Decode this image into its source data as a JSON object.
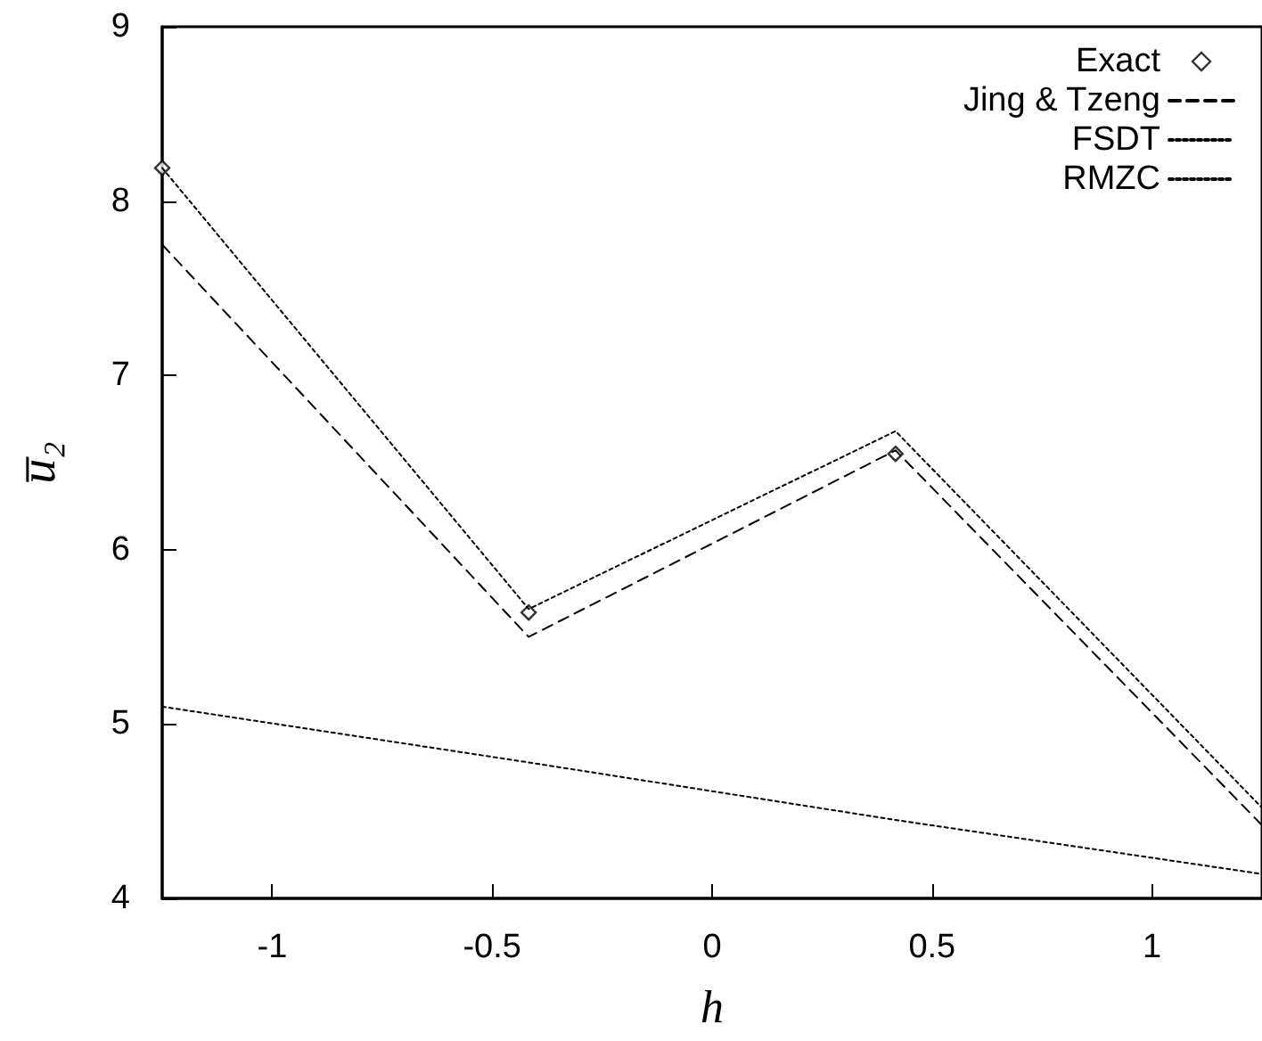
{
  "chart_data": {
    "type": "line",
    "xlabel": "h",
    "ylabel": "u̅₂",
    "xlim": [
      -1.25,
      1.25
    ],
    "xticks": [
      -1,
      -0.5,
      0,
      0.5,
      1
    ],
    "ylim": [
      4,
      9
    ],
    "yticks": [
      4,
      5,
      6,
      7,
      8,
      9
    ],
    "x": [
      -1.25,
      -0.417,
      0.417,
      1.25
    ],
    "series": [
      {
        "name": "Exact",
        "type": "scatter",
        "marker": "diamond",
        "color": "#000000",
        "values": [
          8.19,
          5.64,
          6.55,
          null
        ]
      },
      {
        "name": "Jing & Tzeng",
        "marker": "none",
        "line_style": "dashed",
        "color": "#000000",
        "values": [
          7.75,
          5.5,
          6.57,
          4.42
        ]
      },
      {
        "name": "FSDT",
        "marker": "none",
        "line_style": "dotted",
        "color": "#000000",
        "values": [
          5.1,
          4.78,
          4.45,
          4.14
        ]
      },
      {
        "name": "RMZC",
        "marker": "none",
        "line_style": "dotted",
        "color": "#000000",
        "values": [
          8.19,
          5.66,
          6.68,
          4.52
        ]
      }
    ],
    "legend": "top right",
    "grid": false
  }
}
